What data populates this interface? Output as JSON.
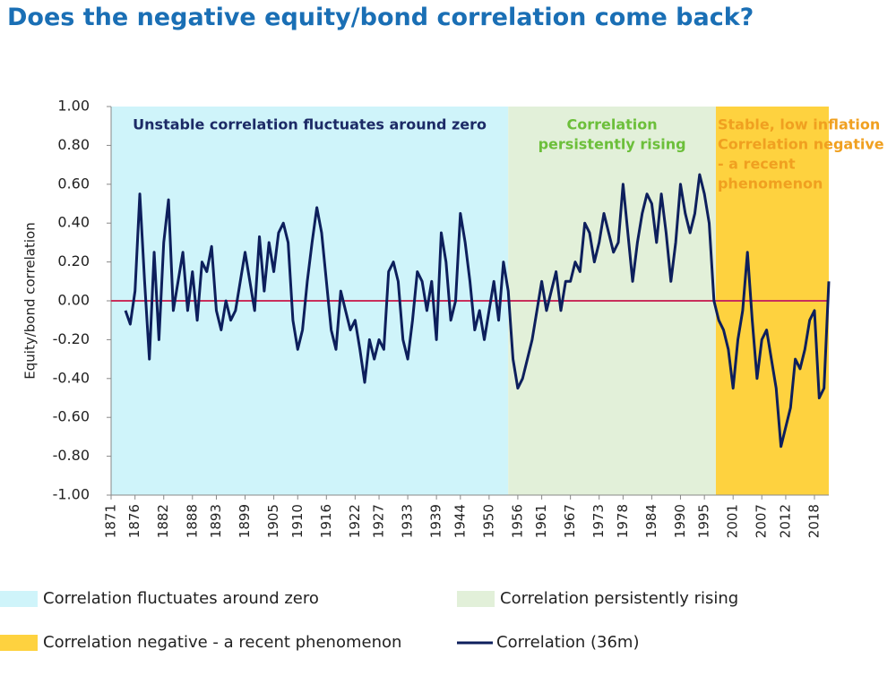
{
  "chart_data": {
    "type": "line",
    "title": "Does the negative equity/bond correlation come back?",
    "y_label": "Equity/bond correlation",
    "xlim": [
      1871,
      2021
    ],
    "xticks": [
      1871,
      1876,
      1882,
      1888,
      1893,
      1899,
      1905,
      1910,
      1916,
      1922,
      1927,
      1933,
      1939,
      1944,
      1950,
      1956,
      1961,
      1967,
      1973,
      1978,
      1984,
      1990,
      1995,
      2001,
      2007,
      2012,
      2018
    ],
    "ylim": [
      -1,
      1
    ],
    "yticks": [
      {
        "value": -1,
        "label": "-1.00"
      },
      {
        "value": -0.8,
        "label": "-0.80"
      },
      {
        "value": -0.6,
        "label": "-0.60"
      },
      {
        "value": -0.4,
        "label": "-0.40"
      },
      {
        "value": -0.2,
        "label": "-0.20"
      },
      {
        "value": 0,
        "label": "0.00"
      },
      {
        "value": 0.2,
        "label": "0.20"
      },
      {
        "value": 0.4,
        "label": "0.40"
      },
      {
        "value": 0.6,
        "label": "0.60"
      },
      {
        "value": 0.8,
        "label": "0.80"
      },
      {
        "value": 1,
        "label": "1.00"
      }
    ],
    "reference_line": {
      "value": 0,
      "color": "#c8305c"
    },
    "regions": [
      {
        "name": "Correlation fluctuates around zero",
        "start": 1871,
        "end": 1954,
        "color": "#cff4fa",
        "annotation": [
          "Unstable correlation fluctuates around zero"
        ],
        "annotation_color": "#1c2a66"
      },
      {
        "name": "Correlation persistently rising",
        "start": 1954,
        "end": 1997.4,
        "color": "#e2f0d9",
        "annotation": [
          "Correlation",
          "persistently rising"
        ],
        "annotation_color": "#6cbf3a"
      },
      {
        "name": "Correlation negative - a recent phenomenon",
        "start": 1997.4,
        "end": 2021,
        "color": "#fed23f",
        "annotation": [
          "Stable, low inflation",
          "Correlation negative",
          "- a recent",
          "phenomenon"
        ],
        "annotation_color": "#f0a020"
      }
    ],
    "x": [
      1874,
      1875,
      1876,
      1877,
      1878,
      1879,
      1880,
      1881,
      1882,
      1883,
      1884,
      1885,
      1886,
      1887,
      1888,
      1889,
      1890,
      1891,
      1892,
      1893,
      1894,
      1895,
      1896,
      1897,
      1898,
      1899,
      1900,
      1901,
      1902,
      1903,
      1904,
      1905,
      1906,
      1907,
      1908,
      1909,
      1910,
      1911,
      1912,
      1913,
      1914,
      1915,
      1916,
      1917,
      1918,
      1919,
      1920,
      1921,
      1922,
      1923,
      1924,
      1925,
      1926,
      1927,
      1928,
      1929,
      1930,
      1931,
      1932,
      1933,
      1934,
      1935,
      1936,
      1937,
      1938,
      1939,
      1940,
      1941,
      1942,
      1943,
      1944,
      1945,
      1946,
      1947,
      1948,
      1949,
      1950,
      1951,
      1952,
      1953,
      1954,
      1955,
      1956,
      1957,
      1958,
      1959,
      1960,
      1961,
      1962,
      1963,
      1964,
      1965,
      1966,
      1967,
      1968,
      1969,
      1970,
      1971,
      1972,
      1973,
      1974,
      1975,
      1976,
      1977,
      1978,
      1979,
      1980,
      1981,
      1982,
      1983,
      1984,
      1985,
      1986,
      1987,
      1988,
      1989,
      1990,
      1991,
      1992,
      1993,
      1994,
      1995,
      1996,
      1997,
      1998,
      1999,
      2000,
      2001,
      2002,
      2003,
      2004,
      2005,
      2006,
      2007,
      2008,
      2009,
      2010,
      2011,
      2012,
      2013,
      2014,
      2015,
      2016,
      2017,
      2018,
      2019,
      2020,
      2021
    ],
    "series": [
      {
        "name": "Correlation (36m)",
        "color": "#0d1f5c",
        "values": [
          -0.05,
          -0.12,
          0.05,
          0.55,
          0.1,
          -0.3,
          0.25,
          -0.2,
          0.3,
          0.52,
          -0.05,
          0.1,
          0.25,
          -0.05,
          0.15,
          -0.1,
          0.2,
          0.15,
          0.28,
          -0.05,
          -0.15,
          0.0,
          -0.1,
          -0.05,
          0.1,
          0.25,
          0.1,
          -0.05,
          0.33,
          0.05,
          0.3,
          0.15,
          0.35,
          0.4,
          0.3,
          -0.1,
          -0.25,
          -0.15,
          0.1,
          0.3,
          0.48,
          0.35,
          0.1,
          -0.15,
          -0.25,
          0.05,
          -0.05,
          -0.15,
          -0.1,
          -0.25,
          -0.42,
          -0.2,
          -0.3,
          -0.2,
          -0.25,
          0.15,
          0.2,
          0.1,
          -0.2,
          -0.3,
          -0.1,
          0.15,
          0.1,
          -0.05,
          0.1,
          -0.2,
          0.35,
          0.2,
          -0.1,
          0.0,
          0.45,
          0.3,
          0.1,
          -0.15,
          -0.05,
          -0.2,
          -0.05,
          0.1,
          -0.1,
          0.2,
          0.05,
          -0.3,
          -0.45,
          -0.4,
          -0.3,
          -0.2,
          -0.05,
          0.1,
          -0.05,
          0.05,
          0.15,
          -0.05,
          0.1,
          0.1,
          0.2,
          0.15,
          0.4,
          0.35,
          0.2,
          0.3,
          0.45,
          0.35,
          0.25,
          0.3,
          0.6,
          0.35,
          0.1,
          0.3,
          0.45,
          0.55,
          0.5,
          0.3,
          0.55,
          0.35,
          0.1,
          0.3,
          0.6,
          0.45,
          0.35,
          0.45,
          0.65,
          0.55,
          0.4,
          0.0,
          -0.1,
          -0.15,
          -0.25,
          -0.45,
          -0.2,
          -0.05,
          0.25,
          -0.1,
          -0.4,
          -0.2,
          -0.15,
          -0.3,
          -0.45,
          -0.75,
          -0.65,
          -0.55,
          -0.3,
          -0.35,
          -0.25,
          -0.1,
          -0.05,
          -0.5,
          -0.45,
          0.1
        ]
      }
    ]
  }
}
